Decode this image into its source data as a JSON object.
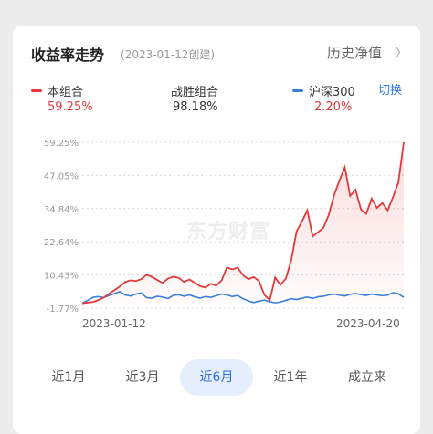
{
  "header": {
    "title": "收益率走势",
    "created": "(2023-01-12创建)",
    "history_link": "历史净值",
    "history_arrow": "〉"
  },
  "legend": {
    "portfolio": {
      "label": "本组合",
      "value": "59.25%",
      "color": "#e03a3a"
    },
    "beat": {
      "label": "战胜组合",
      "value": "98.18%"
    },
    "index": {
      "label": "沪深300",
      "value": "2.20%",
      "color": "#3a7fd8"
    },
    "switch_label": "切换"
  },
  "watermark": "东方财富",
  "chart_data": {
    "type": "line",
    "y_ticks": [
      "59.25%",
      "47.05%",
      "34.84%",
      "22.64%",
      "10.43%",
      "-1.77%"
    ],
    "ylim": [
      -1.77,
      59.25
    ],
    "x_start_label": "2023-01-12",
    "x_end_label": "2023-04-20",
    "series": [
      {
        "name": "本组合",
        "color": "#e03a3a",
        "values": [
          0,
          0.3,
          0.5,
          1.2,
          2.1,
          3.5,
          4.8,
          6.2,
          7.8,
          8.5,
          8.2,
          8.9,
          10.5,
          9.8,
          8.6,
          7.5,
          9.1,
          9.8,
          9.4,
          7.9,
          8.8,
          7.6,
          6.3,
          5.8,
          7.2,
          6.5,
          8.4,
          13.2,
          12.5,
          13.1,
          10.4,
          8.9,
          9.7,
          8.2,
          3.1,
          1.2,
          9.5,
          6.8,
          9.2,
          15.8,
          26.5,
          30.1,
          34.2,
          24.6,
          26.2,
          27.8,
          32.5,
          39.8,
          45.2,
          50.1,
          39.5,
          41.8,
          34.6,
          32.9,
          38.5,
          35.1,
          36.9,
          34.2,
          39.1,
          44.5,
          59.25
        ]
      },
      {
        "name": "沪深300",
        "color": "#3a7fd8",
        "values": [
          0,
          1.1,
          2.2,
          2.5,
          2.1,
          2.9,
          3.6,
          4.3,
          3.1,
          2.7,
          3.4,
          3.8,
          2.1,
          1.9,
          2.6,
          2.3,
          1.8,
          2.9,
          3.2,
          2.6,
          3.1,
          2.4,
          1.9,
          2.5,
          2.2,
          2.8,
          3.4,
          3.1,
          2.5,
          2.9,
          1.7,
          0.9,
          0.3,
          0.8,
          1.2,
          0.6,
          0.2,
          0.5,
          1.1,
          1.7,
          1.4,
          1.9,
          2.3,
          1.8,
          2.4,
          2.6,
          3.1,
          3.4,
          3.0,
          2.7,
          3.3,
          3.6,
          3.2,
          2.9,
          3.4,
          3.1,
          2.8,
          3.0,
          3.9,
          3.5,
          2.2
        ]
      }
    ]
  },
  "tabs": [
    {
      "label": "近1月",
      "active": false
    },
    {
      "label": "近3月",
      "active": false
    },
    {
      "label": "近6月",
      "active": true
    },
    {
      "label": "近1年",
      "active": false
    },
    {
      "label": "成立来",
      "active": false
    }
  ]
}
